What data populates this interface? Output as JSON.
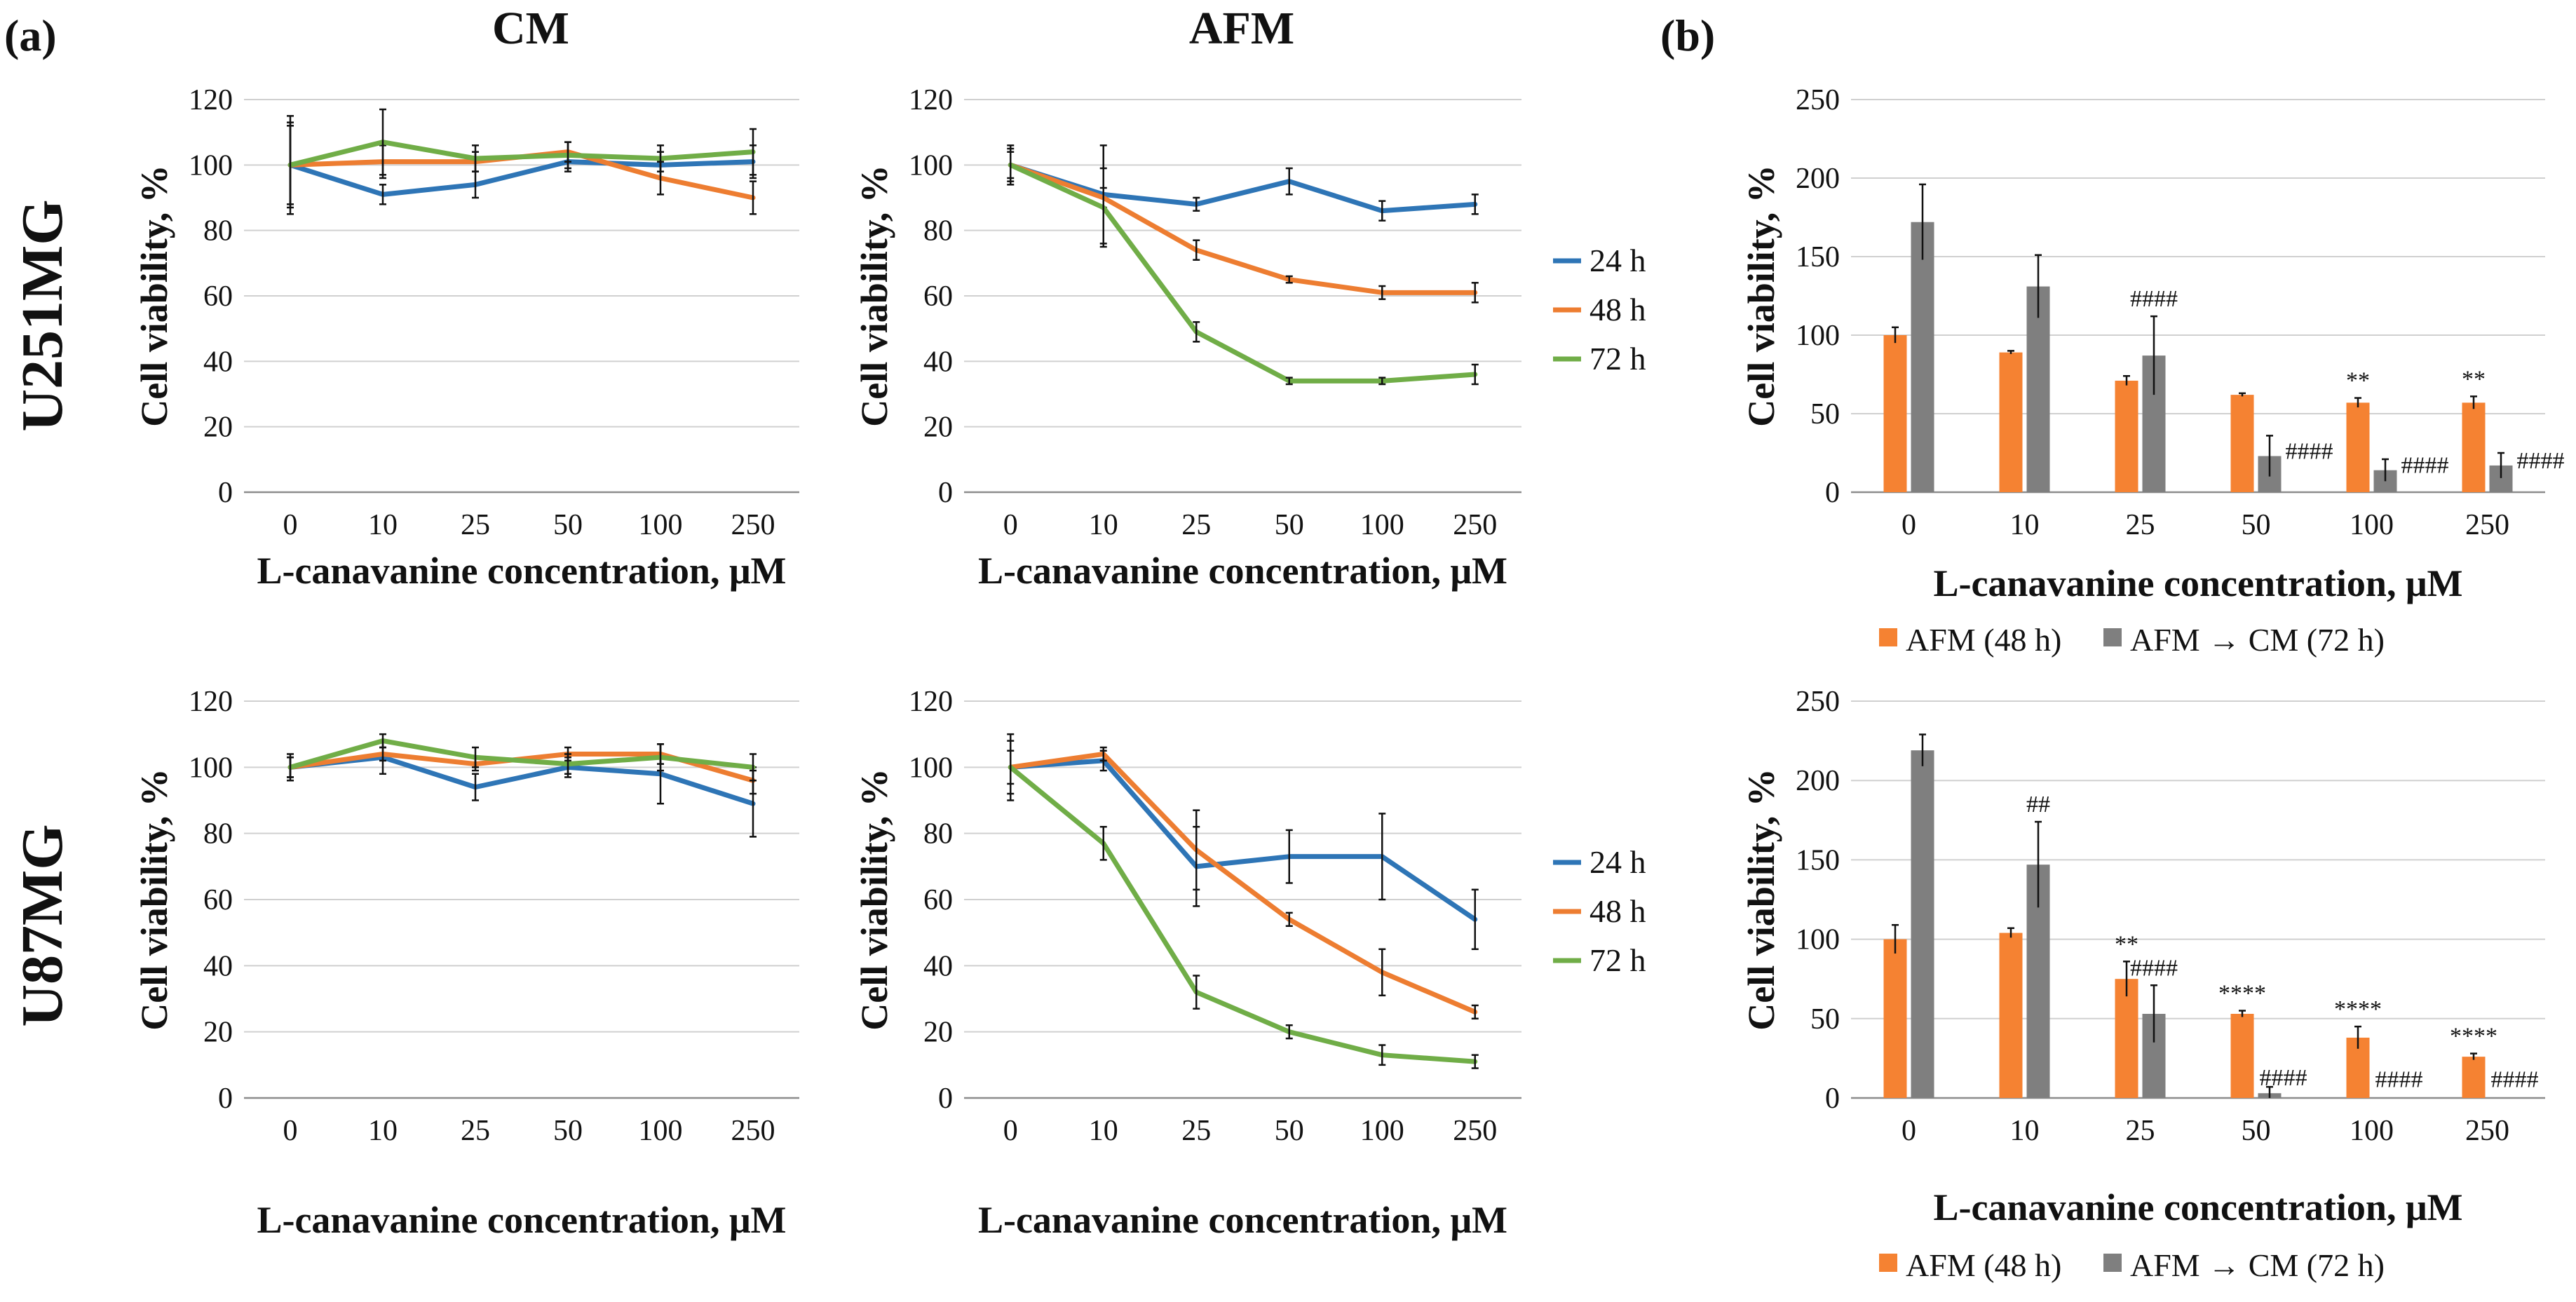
{
  "figure": {
    "panel_a_label": "(a)",
    "panel_b_label": "(b)",
    "col_cm": "CM",
    "col_afm": "AFM",
    "row_u251": "U251MG",
    "row_u87": "U87MG"
  },
  "chart_data": [
    {
      "id": "u251-cm",
      "type": "line",
      "categories": [
        "0",
        "10",
        "25",
        "50",
        "100",
        "250"
      ],
      "ylim": [
        0,
        120
      ],
      "yticks": [
        "0",
        "20",
        "40",
        "60",
        "80",
        "100",
        "120"
      ],
      "ylabel": "Cell viability, %",
      "xlabel": "L-canavanine concentration, μM",
      "series": [
        {
          "name": "24 h",
          "color": "#2e75b6",
          "values": [
            100,
            91,
            94,
            101,
            100,
            101
          ],
          "errors": [
            15,
            3,
            4,
            3,
            4,
            5
          ]
        },
        {
          "name": "48 h",
          "color": "#ed7d31",
          "values": [
            100,
            101,
            101,
            104,
            96,
            90
          ],
          "errors": [
            12,
            5,
            3,
            3,
            5,
            5
          ]
        },
        {
          "name": "72 h",
          "color": "#70ad47",
          "values": [
            100,
            107,
            102,
            103,
            102,
            104
          ],
          "errors": [
            13,
            10,
            4,
            4,
            4,
            7
          ]
        }
      ]
    },
    {
      "id": "u251-afm",
      "type": "line",
      "categories": [
        "0",
        "10",
        "25",
        "50",
        "100",
        "250"
      ],
      "ylim": [
        0,
        120
      ],
      "yticks": [
        "0",
        "20",
        "40",
        "60",
        "80",
        "100",
        "120"
      ],
      "ylabel": "Cell viability, %",
      "xlabel": "L-canavanine concentration, μM",
      "legend": [
        "24 h",
        "48 h",
        "72 h"
      ],
      "series": [
        {
          "name": "24 h",
          "color": "#2e75b6",
          "values": [
            100,
            91,
            88,
            95,
            86,
            88
          ],
          "errors": [
            5,
            15,
            2,
            4,
            3,
            3
          ]
        },
        {
          "name": "48 h",
          "color": "#ed7d31",
          "values": [
            100,
            90,
            74,
            65,
            61,
            61
          ],
          "errors": [
            4,
            3,
            3,
            1,
            2,
            3
          ]
        },
        {
          "name": "72 h",
          "color": "#70ad47",
          "values": [
            100,
            87,
            49,
            34,
            34,
            36
          ],
          "errors": [
            6,
            12,
            3,
            1,
            1,
            3
          ]
        }
      ]
    },
    {
      "id": "u87-cm",
      "type": "line",
      "categories": [
        "0",
        "10",
        "25",
        "50",
        "100",
        "250"
      ],
      "ylim": [
        0,
        120
      ],
      "yticks": [
        "0",
        "20",
        "40",
        "60",
        "80",
        "100",
        "120"
      ],
      "ylabel": "Cell viability, %",
      "xlabel": "L-canavanine concentration, μM",
      "series": [
        {
          "name": "24 h",
          "color": "#2e75b6",
          "values": [
            100,
            103,
            94,
            100,
            98,
            89
          ],
          "errors": [
            4,
            5,
            4,
            3,
            9,
            10
          ]
        },
        {
          "name": "48 h",
          "color": "#ed7d31",
          "values": [
            100,
            104,
            101,
            104,
            104,
            96
          ],
          "errors": [
            3,
            2,
            2,
            2,
            3,
            4
          ]
        },
        {
          "name": "72 h",
          "color": "#70ad47",
          "values": [
            100,
            108,
            103,
            101,
            103,
            100
          ],
          "errors": [
            3,
            2,
            3,
            3,
            4,
            4
          ]
        }
      ]
    },
    {
      "id": "u87-afm",
      "type": "line",
      "categories": [
        "0",
        "10",
        "25",
        "50",
        "100",
        "250"
      ],
      "ylim": [
        0,
        120
      ],
      "yticks": [
        "0",
        "20",
        "40",
        "60",
        "80",
        "100",
        "120"
      ],
      "ylabel": "Cell viability, %",
      "xlabel": "L-canavanine concentration, μM",
      "legend": [
        "24 h",
        "48 h",
        "72 h"
      ],
      "series": [
        {
          "name": "24 h",
          "color": "#2e75b6",
          "values": [
            100,
            102,
            70,
            73,
            73,
            54
          ],
          "errors": [
            10,
            3,
            12,
            8,
            13,
            9
          ]
        },
        {
          "name": "48 h",
          "color": "#ed7d31",
          "values": [
            100,
            104,
            75,
            54,
            38,
            26
          ],
          "errors": [
            5,
            2,
            12,
            2,
            7,
            2
          ]
        },
        {
          "name": "72 h",
          "color": "#70ad47",
          "values": [
            100,
            77,
            32,
            20,
            13,
            11
          ],
          "errors": [
            8,
            5,
            5,
            2,
            3,
            2
          ]
        }
      ]
    },
    {
      "id": "u251-bar",
      "type": "bar",
      "categories": [
        "0",
        "10",
        "25",
        "50",
        "100",
        "250"
      ],
      "ylim": [
        0,
        250
      ],
      "yticks": [
        "0",
        "50",
        "100",
        "150",
        "200",
        "250"
      ],
      "ylabel": "Cell viability, %",
      "xlabel": "L-canavanine concentration, μM",
      "series": [
        {
          "name": "AFM (48 h)",
          "color": "#f58232",
          "values": [
            100,
            89,
            71,
            62,
            57,
            57
          ],
          "errors": [
            5,
            1,
            3,
            1,
            3,
            4
          ],
          "annotations": [
            "",
            "",
            "",
            "",
            "**",
            "**"
          ]
        },
        {
          "name": "AFM → CM (72 h)",
          "color": "#7f7f7f",
          "values": [
            172,
            131,
            87,
            23,
            14,
            17
          ],
          "errors": [
            24,
            20,
            25,
            13,
            7,
            8
          ],
          "annotations": [
            "",
            "",
            "####",
            "####",
            "####",
            "####"
          ]
        }
      ]
    },
    {
      "id": "u87-bar",
      "type": "bar",
      "categories": [
        "0",
        "10",
        "25",
        "50",
        "100",
        "250"
      ],
      "ylim": [
        0,
        250
      ],
      "yticks": [
        "0",
        "50",
        "100",
        "150",
        "200",
        "250"
      ],
      "ylabel": "Cell viability, %",
      "xlabel": "L-canavanine concentration, μM",
      "series": [
        {
          "name": "AFM (48 h)",
          "color": "#f58232",
          "values": [
            100,
            104,
            75,
            53,
            38,
            26
          ],
          "errors": [
            9,
            3,
            11,
            2,
            7,
            2
          ],
          "annotations": [
            "",
            "",
            "**",
            "****",
            "****",
            "****"
          ]
        },
        {
          "name": "AFM → CM (72 h)",
          "color": "#7f7f7f",
          "values": [
            219,
            147,
            53,
            3,
            0,
            0
          ],
          "errors": [
            10,
            27,
            18,
            4,
            0,
            0
          ],
          "annotations": [
            "",
            "##",
            "####",
            "####",
            "####",
            "####"
          ]
        }
      ]
    }
  ]
}
